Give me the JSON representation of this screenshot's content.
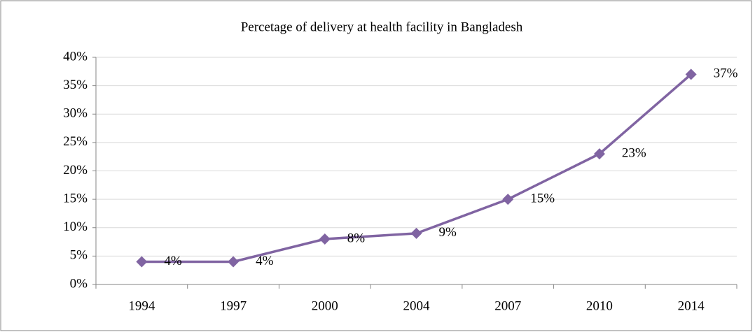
{
  "chart_data": {
    "type": "line",
    "title": "Percetage of delivery at health facility in Bangladesh",
    "categories": [
      "1994",
      "1997",
      "2000",
      "2004",
      "2007",
      "2010",
      "2014"
    ],
    "series": [
      {
        "name": "Delivery at health facility",
        "color": "#8064a2",
        "values": [
          4,
          4,
          8,
          9,
          15,
          23,
          37
        ],
        "value_labels": [
          "4%",
          "4%",
          "8%",
          "9%",
          "15%",
          "23%",
          "37%"
        ]
      }
    ],
    "ylim": [
      0,
      40
    ],
    "yticks": [
      {
        "value": 0,
        "label": "0%"
      },
      {
        "value": 5,
        "label": "5%"
      },
      {
        "value": 10,
        "label": "10%"
      },
      {
        "value": 15,
        "label": "15%"
      },
      {
        "value": 20,
        "label": "20%"
      },
      {
        "value": 25,
        "label": "25%"
      },
      {
        "value": 30,
        "label": "30%"
      },
      {
        "value": 35,
        "label": "35%"
      },
      {
        "value": 40,
        "label": "40%"
      }
    ],
    "grid": true
  }
}
